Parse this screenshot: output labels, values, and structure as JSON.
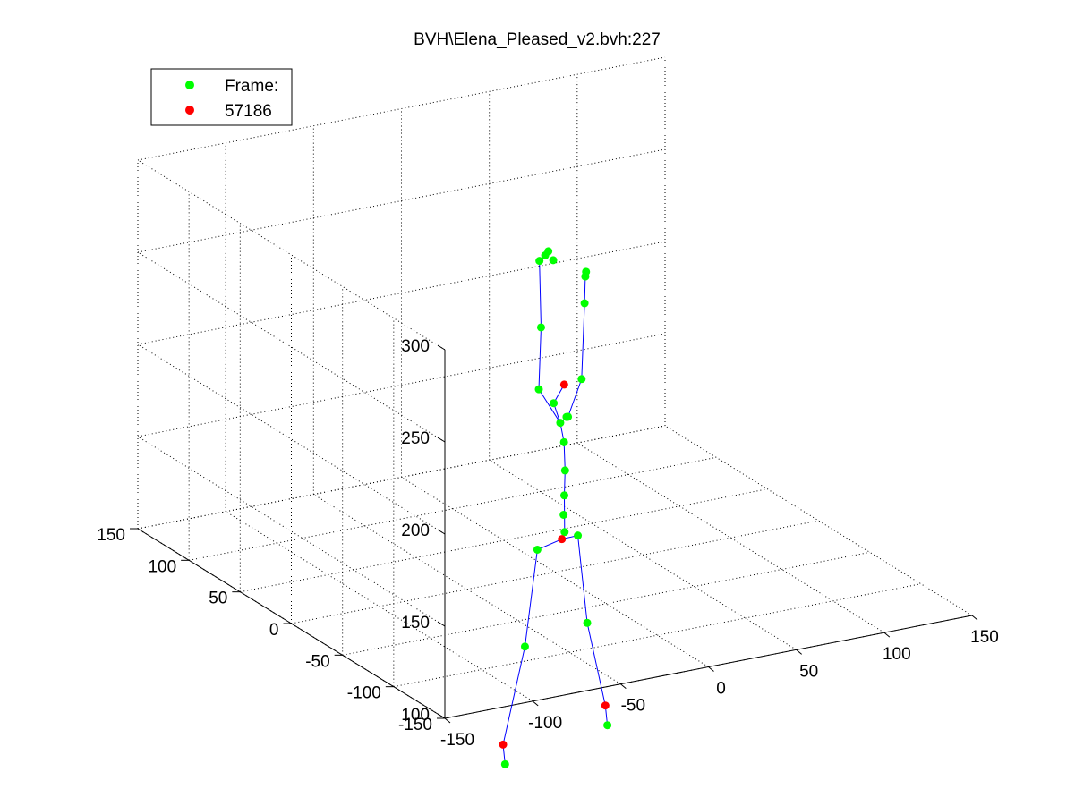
{
  "chart_data": {
    "type": "scatter",
    "title": "BVH\\Elena_Pleased_v2.bvh:227",
    "xlabel": "",
    "ylabel": "",
    "zlabel": "",
    "xlim": [
      -150,
      150
    ],
    "ylim": [
      -150,
      150
    ],
    "zlim": [
      100,
      300
    ],
    "x_ticks": [
      -150,
      -100,
      -50,
      0,
      50,
      100,
      150
    ],
    "y_ticks": [
      -150,
      -100,
      -50,
      0,
      50,
      100,
      150
    ],
    "z_ticks": [
      100,
      150,
      200,
      250,
      300
    ],
    "grid": true,
    "projection": "3d-perspective",
    "legend": {
      "placement": "top-left",
      "entries": [
        {
          "label": "Frame:",
          "color": "#00ff00"
        },
        {
          "label": "57186",
          "color": "#ff0000"
        }
      ]
    },
    "colors": {
      "green_marker": "#00ff00",
      "red_marker": "#ff0000",
      "bone": "#0000ff",
      "axis": "#000000",
      "grid": "#000000"
    },
    "series": [
      {
        "name": "Frame:",
        "color": "#00ff00",
        "points": [
          [
            8,
            15,
            185
          ],
          [
            10,
            12,
            175
          ],
          [
            11,
            10,
            165
          ],
          [
            11,
            9,
            150
          ],
          [
            10,
            8,
            137
          ],
          [
            9,
            7,
            127
          ],
          [
            9,
            6,
            118
          ],
          [
            13,
            11,
            178
          ],
          [
            15,
            13,
            177
          ],
          [
            -8,
            2,
            200
          ],
          [
            -5,
            5,
            232
          ],
          [
            -3,
            10,
            266
          ],
          [
            2,
            13,
            267
          ],
          [
            5,
            15,
            268
          ],
          [
            6,
            12,
            264
          ],
          [
            28,
            22,
            192
          ],
          [
            32,
            26,
            231
          ],
          [
            33,
            27,
            245
          ],
          [
            34,
            28,
            247
          ],
          [
            -10,
            0,
            114
          ],
          [
            -20,
            -5,
            65
          ],
          [
            -40,
            -20,
            10
          ],
          [
            20,
            12,
            112
          ],
          [
            30,
            20,
            60
          ],
          [
            38,
            14,
            5
          ]
        ]
      },
      {
        "name": "57186",
        "color": "#ff0000",
        "points": [
          [
            14,
            15,
            194
          ],
          [
            8,
            7,
            114
          ],
          [
            -40,
            -18,
            20
          ],
          [
            38,
            16,
            15
          ]
        ]
      }
    ],
    "bones": [
      [
        [
          9,
          6,
          118
        ],
        [
          10,
          8,
          137
        ],
        [
          11,
          9,
          150
        ],
        [
          11,
          10,
          165
        ],
        [
          10,
          12,
          175
        ],
        [
          8,
          15,
          185
        ],
        [
          14,
          15,
          194
        ]
      ],
      [
        [
          10,
          12,
          175
        ],
        [
          -8,
          2,
          200
        ],
        [
          -5,
          5,
          232
        ],
        [
          -3,
          10,
          266
        ],
        [
          2,
          13,
          267
        ]
      ],
      [
        [
          10,
          12,
          175
        ],
        [
          15,
          13,
          177
        ],
        [
          28,
          22,
          192
        ],
        [
          32,
          26,
          231
        ],
        [
          33,
          27,
          245
        ]
      ],
      [
        [
          8,
          7,
          114
        ],
        [
          -10,
          0,
          114
        ],
        [
          -20,
          -5,
          65
        ],
        [
          -40,
          -18,
          20
        ],
        [
          -40,
          -20,
          10
        ]
      ],
      [
        [
          8,
          7,
          114
        ],
        [
          20,
          12,
          112
        ],
        [
          30,
          20,
          60
        ],
        [
          38,
          16,
          15
        ],
        [
          38,
          14,
          5
        ]
      ]
    ]
  }
}
